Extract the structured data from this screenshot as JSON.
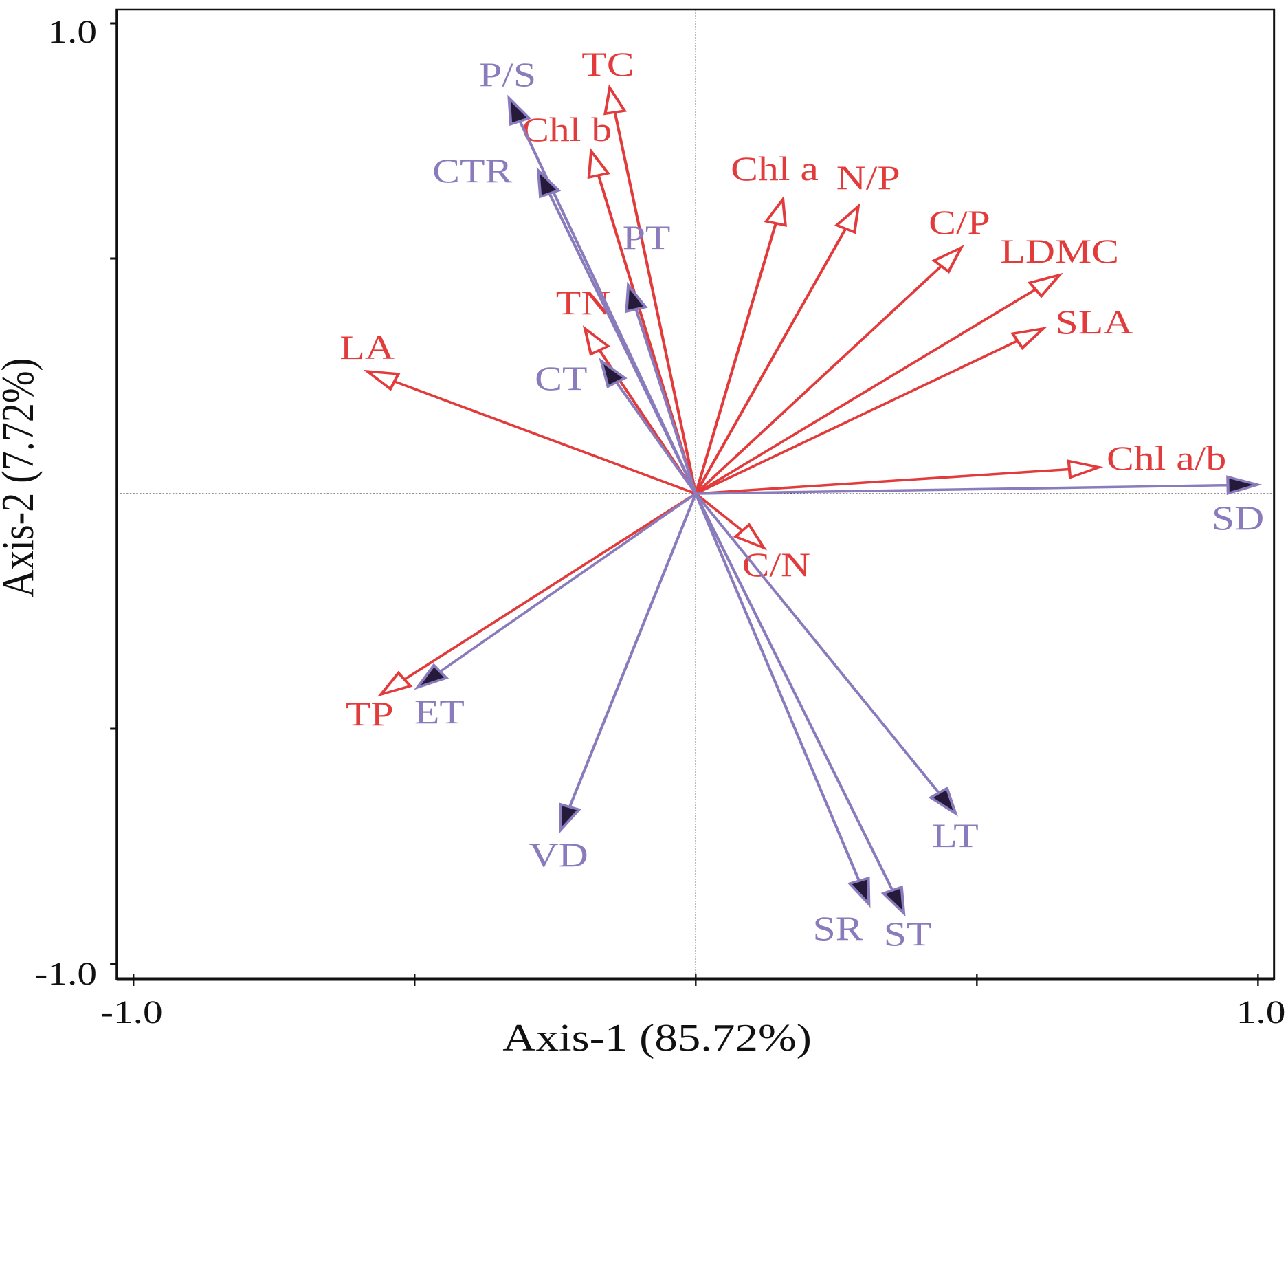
{
  "chart_data": {
    "type": "biplot",
    "xlabel": "Axis-1 (85.72%)",
    "ylabel": "Axis-2 (7.72%)",
    "xlim": [
      -1.0,
      1.0
    ],
    "ylim": [
      -1.0,
      1.0
    ],
    "x_tick_labels": [
      "-1.0",
      "1.0"
    ],
    "y_tick_labels": [
      "1.0",
      "-1.0"
    ],
    "x_ticks": [
      -1.0,
      -0.5,
      0,
      0.5,
      1.0
    ],
    "y_ticks": [
      1.0,
      0.5,
      -0.5,
      -1.0
    ],
    "zero_lines": true,
    "colors": {
      "group_red": "#e23b3b",
      "group_purple": "#8a7cbc",
      "purple_head_fill": "#251a3a"
    },
    "series": [
      {
        "group": "red",
        "head": "hollow",
        "vectors": [
          {
            "label": "TC",
            "x": -0.153,
            "y": 0.863
          },
          {
            "label": "Chl b",
            "x": -0.186,
            "y": 0.728
          },
          {
            "label": "TN",
            "x": -0.197,
            "y": 0.351
          },
          {
            "label": "LA",
            "x": -0.584,
            "y": 0.26
          },
          {
            "label": "Chl a",
            "x": 0.155,
            "y": 0.626
          },
          {
            "label": "N/P",
            "x": 0.289,
            "y": 0.611
          },
          {
            "label": "C/P",
            "x": 0.472,
            "y": 0.523
          },
          {
            "label": "LDMC",
            "x": 0.647,
            "y": 0.465
          },
          {
            "label": "SLA",
            "x": 0.618,
            "y": 0.351
          },
          {
            "label": "Chl a/b",
            "x": 0.717,
            "y": 0.056
          },
          {
            "label": "C/N",
            "x": 0.121,
            "y": -0.115
          },
          {
            "label": "TP",
            "x": -0.56,
            "y": -0.427
          }
        ]
      },
      {
        "group": "purple",
        "head": "filled",
        "vectors": [
          {
            "label": "P/S",
            "x": -0.332,
            "y": 0.841
          },
          {
            "label": "CTR",
            "x": -0.28,
            "y": 0.687
          },
          {
            "label": "PT",
            "x": -0.12,
            "y": 0.443
          },
          {
            "label": "CT",
            "x": -0.168,
            "y": 0.282
          },
          {
            "label": "SD",
            "x": 0.999,
            "y": 0.019
          },
          {
            "label": "ET",
            "x": -0.495,
            "y": -0.412
          },
          {
            "label": "VD",
            "x": -0.241,
            "y": -0.716
          },
          {
            "label": "LT",
            "x": 0.462,
            "y": -0.68
          },
          {
            "label": "SR",
            "x": 0.308,
            "y": -0.873
          },
          {
            "label": "ST",
            "x": 0.37,
            "y": -0.892
          }
        ]
      }
    ]
  }
}
